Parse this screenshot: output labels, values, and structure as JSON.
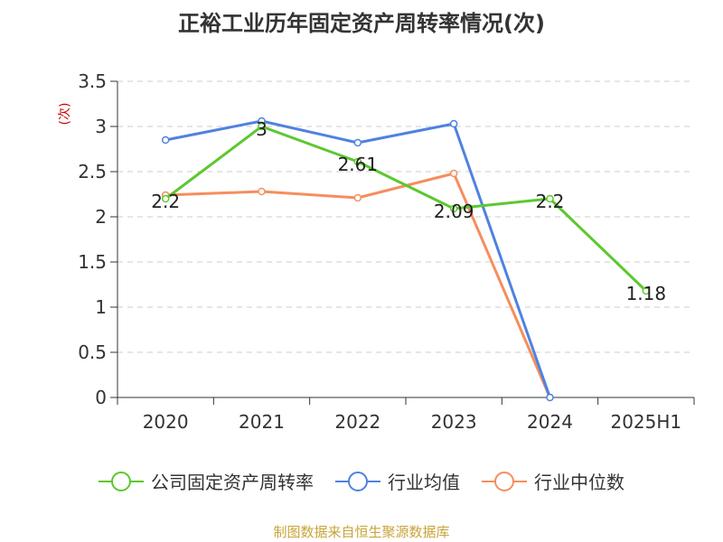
{
  "chart_data": {
    "type": "line",
    "title": "正裕工业历年固定资产周转率情况(次)",
    "ylabel": "(次)",
    "xlabel": "",
    "categories": [
      "2020",
      "2021",
      "2022",
      "2023",
      "2024",
      "2025H1"
    ],
    "ylim": [
      0,
      3.5
    ],
    "yticks": [
      "0",
      "0.5",
      "1",
      "1.5",
      "2",
      "2.5",
      "3",
      "3.5"
    ],
    "grid": true,
    "legend_position": "bottom",
    "series": [
      {
        "name": "公司固定资产周转率",
        "color": "#5cc82e",
        "values": [
          2.2,
          3,
          2.61,
          2.09,
          2.2,
          1.18
        ],
        "labels": [
          "2.2",
          "3",
          "2.61",
          "2.09",
          "2.2",
          "1.18"
        ]
      },
      {
        "name": "行业均值",
        "color": "#4f82e0",
        "values": [
          2.85,
          3.06,
          2.82,
          3.03,
          0,
          null
        ]
      },
      {
        "name": "行业中位数",
        "color": "#f58e5e",
        "values": [
          2.24,
          2.28,
          2.21,
          2.48,
          0,
          null
        ]
      }
    ]
  },
  "source_note": "制图数据来自恒生聚源数据库",
  "colors": {
    "axis": "#333333",
    "grid": "#cccccc",
    "ylabel": "#cc0000",
    "source": "#c9a43a"
  }
}
